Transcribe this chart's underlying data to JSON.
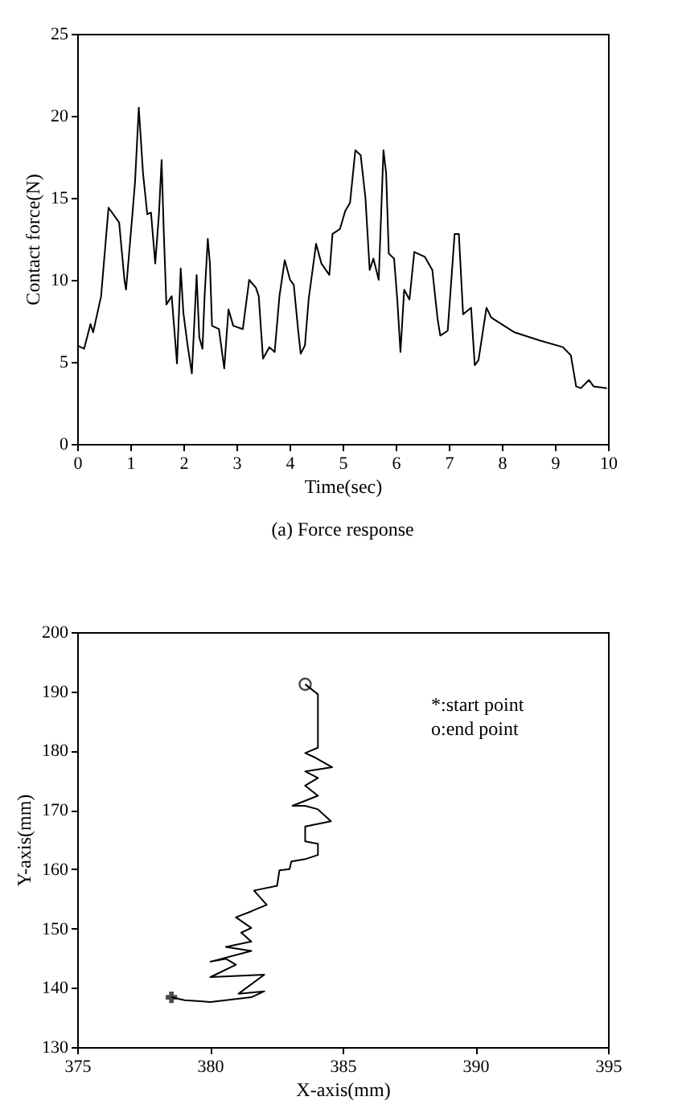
{
  "chart_data": [
    {
      "type": "line",
      "xlabel": "Time(sec)",
      "ylabel": "Contact force(N)",
      "annotations": [
        "(a) Force response"
      ],
      "xlim": [
        0,
        10
      ],
      "xticks": [
        0,
        1,
        2,
        3,
        4,
        5,
        6,
        7,
        8,
        9,
        10
      ],
      "ylim": [
        0,
        25
      ],
      "yticks": [
        0,
        5,
        10,
        15,
        20,
        25
      ],
      "grid": false,
      "marker": "none",
      "line_style": "solid",
      "series": [
        {
          "color": "#000000",
          "x": [
            0,
            0.13,
            0.25,
            0.3,
            0.45,
            0.59,
            0.79,
            0.89,
            0.92,
            1.04,
            1.09,
            1.16,
            1.24,
            1.32,
            1.39,
            1.47,
            1.54,
            1.59,
            1.63,
            1.68,
            1.78,
            1.88,
            1.95,
            2.0,
            2.08,
            2.16,
            2.25,
            2.3,
            2.36,
            2.4,
            2.46,
            2.5,
            2.54,
            2.67,
            2.77,
            2.85,
            2.94,
            3.12,
            3.24,
            3.37,
            3.42,
            3.5,
            3.62,
            3.72,
            3.81,
            3.91,
            4.01,
            4.08,
            4.16,
            4.21,
            4.29,
            4.36,
            4.5,
            4.6,
            4.75,
            4.81,
            4.95,
            5.05,
            5.14,
            5.24,
            5.34,
            5.43,
            5.51,
            5.58,
            5.68,
            5.77,
            5.82,
            5.87,
            5.97,
            6.03,
            6.09,
            6.16,
            6.26,
            6.35,
            6.55,
            6.69,
            6.79,
            6.84,
            6.98,
            7.11,
            7.19,
            7.27,
            7.42,
            7.49,
            7.56,
            7.71,
            7.8,
            8.24,
            8.72,
            9.15,
            9.3,
            9.4,
            9.49,
            9.64,
            9.73,
            9.98
          ],
          "values": [
            6.0,
            5.8,
            7.3,
            6.8,
            9.0,
            14.4,
            13.5,
            10.0,
            9.4,
            14.0,
            16.0,
            20.5,
            16.5,
            14.0,
            14.1,
            11.0,
            14.0,
            17.3,
            13.0,
            8.5,
            9.0,
            4.9,
            10.7,
            8.0,
            6.0,
            4.3,
            10.3,
            6.5,
            5.8,
            9.0,
            12.5,
            11.0,
            7.2,
            7.0,
            4.6,
            8.2,
            7.2,
            7.0,
            10.0,
            9.5,
            9.0,
            5.2,
            5.9,
            5.6,
            9.0,
            11.2,
            10.0,
            9.7,
            7.0,
            5.5,
            6.0,
            8.8,
            12.2,
            11.0,
            10.3,
            12.8,
            13.1,
            14.2,
            14.7,
            17.9,
            17.6,
            15.0,
            10.6,
            11.3,
            10.0,
            17.9,
            16.5,
            11.6,
            11.3,
            8.8,
            5.6,
            9.4,
            8.8,
            11.7,
            11.4,
            10.6,
            7.6,
            6.6,
            6.9,
            12.8,
            12.8,
            7.9,
            8.3,
            4.8,
            5.1,
            8.3,
            7.7,
            6.8,
            6.3,
            5.9,
            5.4,
            3.5,
            3.4,
            3.9,
            3.5,
            3.4
          ]
        }
      ]
    },
    {
      "type": "line",
      "xlabel": "X-axis(mm)",
      "ylabel": "Y-axis(mm)",
      "annotations": [
        "*:start point",
        "o:end point"
      ],
      "xlim": [
        375,
        395
      ],
      "xticks": [
        375,
        380,
        385,
        390,
        395
      ],
      "ylim": [
        130,
        200
      ],
      "yticks": [
        130,
        140,
        150,
        160,
        170,
        180,
        190,
        200
      ],
      "grid": false,
      "line_style": "solid",
      "series": [
        {
          "color": "#000000",
          "marker": "none",
          "x": [
            378.55,
            379.05,
            380.02,
            381.56,
            382.05,
            381.08,
            382.05,
            380.02,
            380.98,
            380.6,
            380.02,
            381.56,
            380.6,
            381.56,
            381.18,
            381.56,
            380.98,
            381.56,
            382.14,
            381.66,
            382.53,
            382.62,
            383.0,
            383.07,
            383.59,
            384.07,
            384.07,
            383.59,
            383.59,
            384.56,
            384.07,
            383.59,
            383.11,
            384.07,
            383.59,
            384.07,
            383.59,
            384.61,
            383.98,
            383.59,
            384.07,
            384.07,
            383.59
          ],
          "values": [
            138.4,
            137.9,
            137.6,
            138.4,
            139.4,
            139.0,
            142.2,
            141.8,
            143.9,
            144.9,
            144.4,
            146.2,
            146.9,
            147.8,
            149.3,
            150.1,
            151.9,
            152.9,
            154.0,
            156.4,
            157.2,
            159.8,
            160.0,
            161.3,
            161.7,
            162.4,
            164.3,
            164.7,
            167.2,
            168.1,
            170.1,
            170.7,
            170.7,
            172.4,
            174.1,
            175.4,
            176.5,
            177.2,
            178.8,
            179.6,
            180.5,
            189.5,
            191.2
          ]
        },
        {
          "type": "scatter",
          "marker": "cross",
          "color": "#000000",
          "x": [
            378.55
          ],
          "values": [
            138.4
          ]
        },
        {
          "type": "scatter",
          "marker": "circle",
          "color": "#000000",
          "x": [
            383.59
          ],
          "values": [
            191.2
          ]
        }
      ]
    }
  ]
}
